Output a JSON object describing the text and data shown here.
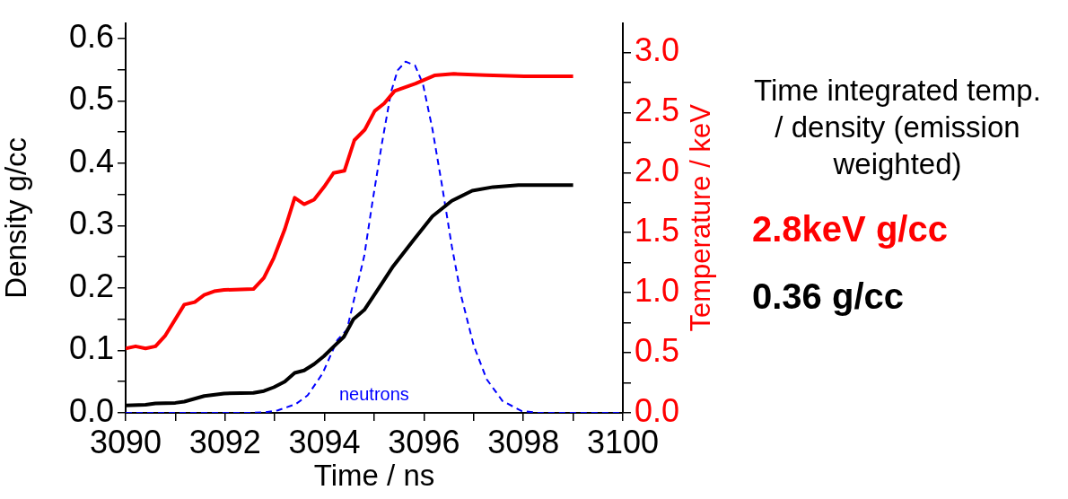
{
  "chart_data": {
    "type": "line",
    "xlabel": "Time / ns",
    "ylabel": "Density g/cc",
    "y2label": "Temperature / keV",
    "xlim": [
      3090,
      3100
    ],
    "xticks": [
      3090,
      {
        "value": 3091,
        "label": null
      },
      3092,
      {
        "value": 3093,
        "label": null
      },
      3094,
      {
        "value": 3095,
        "label": null
      },
      3096,
      {
        "value": 3097,
        "label": null
      },
      3098,
      {
        "value": 3099,
        "label": null
      },
      3100
    ],
    "ylim": [
      0,
      0.625
    ],
    "yticks": [
      {
        "value": 0,
        "label": "0.0"
      },
      {
        "value": 0.05,
        "label": null
      },
      0.1,
      {
        "value": 0.15,
        "label": null
      },
      0.2,
      {
        "value": 0.25,
        "label": null
      },
      0.3,
      {
        "value": 0.35,
        "label": null
      },
      0.4,
      {
        "value": 0.45,
        "label": null
      },
      0.5,
      {
        "value": 0.55,
        "label": null
      },
      0.6
    ],
    "y2lim": [
      0,
      3.245
    ],
    "y2ticks": [
      {
        "value": 0,
        "label": "0.0"
      },
      {
        "value": 0.25,
        "label": null
      },
      0.5,
      {
        "value": 0.75,
        "label": null
      },
      {
        "value": 1,
        "label": "1.0"
      },
      {
        "value": 1.25,
        "label": null
      },
      1.5,
      {
        "value": 1.75,
        "label": null
      },
      {
        "value": 2,
        "label": "2.0"
      },
      {
        "value": 2.25,
        "label": null
      },
      2.5,
      {
        "value": 2.75,
        "label": null
      },
      {
        "value": 3,
        "label": "3.0"
      }
    ],
    "grid": false,
    "legend": false,
    "marker": "none",
    "series": [
      {
        "color": "#ff0000",
        "axis": "y2",
        "x": [
          3090,
          3090.2,
          3090.4,
          3090.6,
          3090.79,
          3091.18,
          3091.39,
          3091.58,
          3091.78,
          3091.98,
          3092.57,
          3092.78,
          3092.98,
          3093.2,
          3093.4,
          3093.59,
          3093.79,
          3093.99,
          3094.18,
          3094.4,
          3094.6,
          3094.81,
          3095.01,
          3095.2,
          3095.41,
          3095.83,
          3096.21,
          3096.6,
          3097.24,
          3098.02,
          3099
        ],
        "values": [
          0.536,
          0.554,
          0.536,
          0.554,
          0.639,
          0.901,
          0.922,
          0.981,
          1.012,
          1.023,
          1.03,
          1.123,
          1.29,
          1.527,
          1.79,
          1.736,
          1.774,
          1.88,
          1.996,
          2.015,
          2.269,
          2.357,
          2.513,
          2.575,
          2.679,
          2.741,
          2.808,
          2.821,
          2.811,
          2.802,
          2.802
        ]
      },
      {
        "color": "#000000",
        "x": [
          3090,
          3090.4,
          3090.6,
          3091,
          3091.18,
          3091.58,
          3091.98,
          3092.57,
          3092.78,
          3092.98,
          3093.2,
          3093.4,
          3093.59,
          3093.79,
          3093.99,
          3094.18,
          3094.39,
          3094.58,
          3094.8,
          3095.15,
          3095.38,
          3095.79,
          3096.17,
          3096.56,
          3096.97,
          3097.39,
          3097.9,
          3099
        ],
        "values": [
          0.012,
          0.013,
          0.015,
          0.016,
          0.018,
          0.027,
          0.031,
          0.032,
          0.035,
          0.041,
          0.05,
          0.064,
          0.068,
          0.078,
          0.091,
          0.106,
          0.122,
          0.15,
          0.165,
          0.207,
          0.235,
          0.277,
          0.315,
          0.34,
          0.356,
          0.362,
          0.365,
          0.365
        ]
      },
      {
        "name": "neutrons",
        "color": "#0000ff",
        "line_style": "dashed",
        "x": [
          3090,
          3092.5,
          3092.82,
          3093.06,
          3093.42,
          3093.66,
          3093.96,
          3094.26,
          3094.45,
          3094.8,
          3094.96,
          3095.15,
          3095.34,
          3095.47,
          3095.63,
          3095.82,
          3095.98,
          3096.17,
          3096.36,
          3096.56,
          3096.75,
          3097,
          3097.26,
          3097.58,
          3097.96,
          3098.3,
          3100
        ],
        "values": [
          0,
          0,
          0.001,
          0.004,
          0.014,
          0.028,
          0.063,
          0.117,
          0.133,
          0.252,
          0.336,
          0.43,
          0.515,
          0.549,
          0.563,
          0.557,
          0.527,
          0.455,
          0.366,
          0.267,
          0.187,
          0.108,
          0.054,
          0.019,
          0.003,
          0,
          0
        ]
      }
    ],
    "annotations": [
      "Time integrated temp. / density (emission weighted)",
      "2.8keV g/cc",
      "0.36 g/cc"
    ]
  }
}
